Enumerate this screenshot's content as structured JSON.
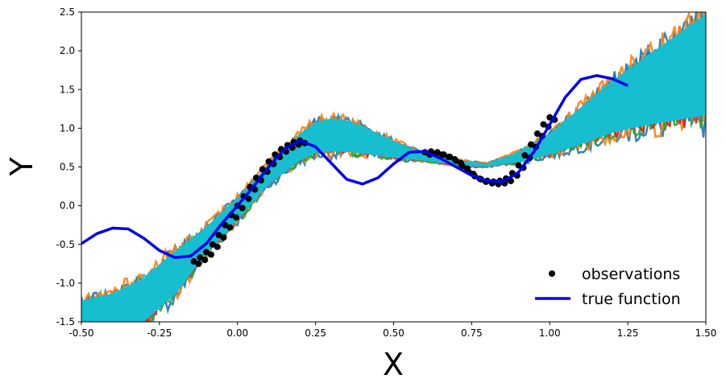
{
  "chart_data": {
    "type": "line",
    "title": "",
    "xlabel": "X",
    "ylabel": "Y",
    "xlim": [
      -0.5,
      1.5
    ],
    "ylim": [
      -1.5,
      2.5
    ],
    "x_ticks": [
      -0.5,
      -0.25,
      0.0,
      0.25,
      0.5,
      0.75,
      1.0,
      1.25,
      1.5
    ],
    "x_tick_labels": [
      "-0.50",
      "-0.25",
      "0.00",
      "0.25",
      "0.50",
      "0.75",
      "1.00",
      "1.25",
      "1.50"
    ],
    "y_ticks": [
      -1.5,
      -1.0,
      -0.5,
      0.0,
      0.5,
      1.0,
      1.5,
      2.0,
      2.5
    ],
    "y_tick_labels": [
      "-1.5",
      "-1.0",
      "-0.5",
      "0.0",
      "0.5",
      "1.0",
      "1.5",
      "2.0",
      "2.5"
    ],
    "grid": false,
    "legend_position": "bottom-right",
    "colors": {
      "true_function": "#0000ee",
      "observations": "#000000",
      "ensemble_fill": "#17becf",
      "sample_palette": [
        "#1f77b4",
        "#ff7f0e",
        "#2ca02c",
        "#d62728",
        "#9467bd",
        "#8c564b",
        "#e377c2",
        "#7f7f7f",
        "#bcbd22",
        "#17becf"
      ]
    },
    "series": [
      {
        "name": "true function",
        "kind": "line",
        "x": [
          -0.5,
          -0.45,
          -0.4,
          -0.35,
          -0.3,
          -0.25,
          -0.2,
          -0.15,
          -0.1,
          -0.05,
          0.0,
          0.05,
          0.1,
          0.15,
          0.2,
          0.25,
          0.3,
          0.35,
          0.4,
          0.45,
          0.5,
          0.55,
          0.6,
          0.65,
          0.7,
          0.75,
          0.8,
          0.85,
          0.9,
          0.95,
          1.0,
          1.05,
          1.1,
          1.15,
          1.2,
          1.25
        ],
        "y": [
          -0.49,
          -0.36,
          -0.29,
          -0.3,
          -0.42,
          -0.58,
          -0.67,
          -0.65,
          -0.49,
          -0.23,
          0.0,
          0.24,
          0.5,
          0.73,
          0.84,
          0.76,
          0.55,
          0.34,
          0.28,
          0.36,
          0.54,
          0.69,
          0.7,
          0.61,
          0.5,
          0.39,
          0.32,
          0.31,
          0.43,
          0.7,
          1.05,
          1.4,
          1.63,
          1.68,
          1.64,
          1.55
        ]
      },
      {
        "name": "observations",
        "kind": "scatter",
        "x": [
          -0.14,
          -0.12,
          -0.1,
          -0.08,
          -0.06,
          -0.04,
          -0.02,
          0.0,
          0.02,
          0.04,
          0.06,
          0.08,
          0.1,
          0.12,
          0.14,
          0.16,
          0.18,
          0.2,
          0.6,
          0.62,
          0.64,
          0.66,
          0.68,
          0.7,
          0.72,
          0.74,
          0.76,
          0.78,
          0.8,
          0.82,
          0.84,
          0.86,
          0.88,
          0.9,
          0.92,
          0.94,
          0.96,
          0.98,
          1.0
        ],
        "y": [
          -0.72,
          -0.67,
          -0.6,
          -0.5,
          -0.38,
          -0.25,
          -0.12,
          0.0,
          0.12,
          0.24,
          0.36,
          0.47,
          0.57,
          0.66,
          0.73,
          0.78,
          0.82,
          0.84,
          0.69,
          0.7,
          0.69,
          0.66,
          0.63,
          0.58,
          0.51,
          0.44,
          0.38,
          0.34,
          0.32,
          0.31,
          0.32,
          0.35,
          0.42,
          0.52,
          0.65,
          0.79,
          0.93,
          1.05,
          1.14
        ]
      }
    ],
    "ensemble_band": {
      "x": [
        -0.5,
        -0.4,
        -0.3,
        -0.2,
        -0.1,
        0.0,
        0.1,
        0.2,
        0.25,
        0.3,
        0.35,
        0.4,
        0.5,
        0.6,
        0.7,
        0.75,
        0.8,
        0.9,
        1.0,
        1.1,
        1.2,
        1.3,
        1.4,
        1.5
      ],
      "lower": [
        -1.75,
        -1.75,
        -1.55,
        -1.2,
        -0.65,
        -0.22,
        0.25,
        0.55,
        0.64,
        0.66,
        0.66,
        0.64,
        0.6,
        0.57,
        0.52,
        0.5,
        0.5,
        0.55,
        0.63,
        0.75,
        0.88,
        0.95,
        1.0,
        1.05
      ],
      "upper": [
        -1.2,
        -1.1,
        -0.9,
        -0.55,
        -0.25,
        0.12,
        0.55,
        0.95,
        1.1,
        1.15,
        1.12,
        1.05,
        0.85,
        0.68,
        0.6,
        0.57,
        0.55,
        0.7,
        0.95,
        1.3,
        1.65,
        1.95,
        2.25,
        2.55
      ]
    },
    "legend": [
      {
        "label": "observations",
        "marker": "dot"
      },
      {
        "label": "true function",
        "marker": "line"
      }
    ]
  }
}
